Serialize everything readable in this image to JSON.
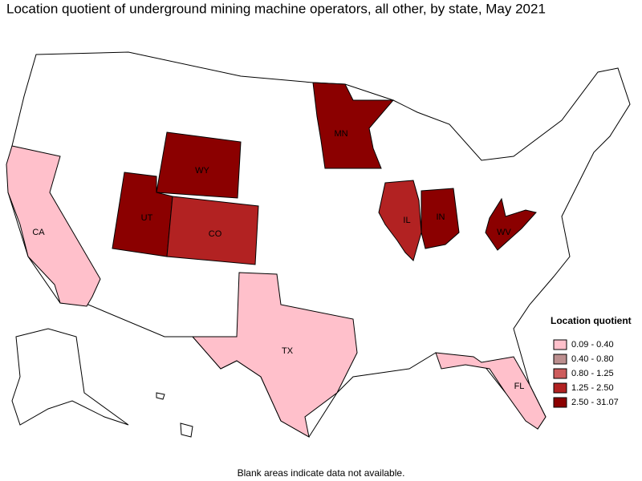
{
  "title": "Location quotient of underground mining machine operators, all other, by state, May 2021",
  "legend": {
    "title": "Location quotient",
    "items": [
      {
        "label": "0.09 - 0.40",
        "color": "#ffc0cb"
      },
      {
        "label": "0.40 - 0.80",
        "color": "#bc8f8f"
      },
      {
        "label": "0.80 - 1.25",
        "color": "#cd5c5c"
      },
      {
        "label": "1.25 - 2.50",
        "color": "#b22222"
      },
      {
        "label": "2.50 - 31.07",
        "color": "#8b0000"
      }
    ]
  },
  "states": [
    {
      "label": "CA",
      "legend_item": 0
    },
    {
      "label": "WY",
      "legend_item": 4
    },
    {
      "label": "UT",
      "legend_item": 4
    },
    {
      "label": "CO",
      "legend_item": 3
    },
    {
      "label": "MN",
      "legend_item": 4
    },
    {
      "label": "IL",
      "legend_item": 3
    },
    {
      "label": "IN",
      "legend_item": 4
    },
    {
      "label": "WV",
      "legend_item": 4
    },
    {
      "label": "TX",
      "legend_item": 0
    },
    {
      "label": "FL",
      "legend_item": 0
    }
  ],
  "note": "Blank areas indicate data not available."
}
